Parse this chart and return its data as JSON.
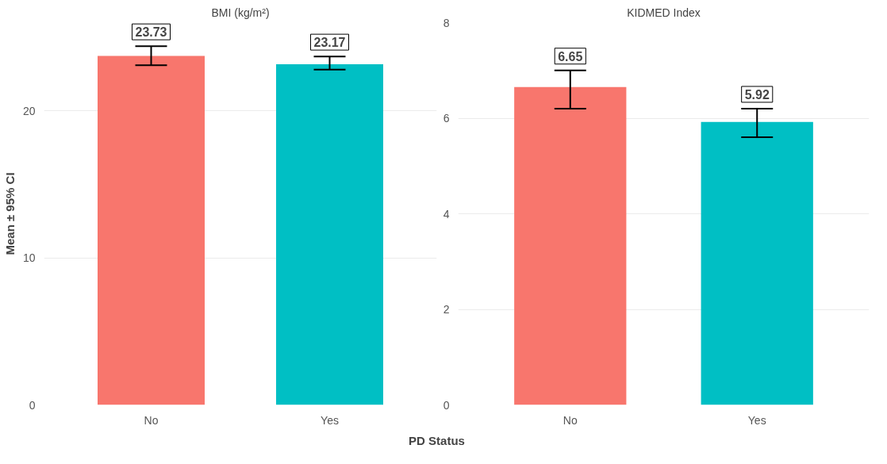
{
  "chart_data": [
    {
      "type": "bar",
      "title": "BMI (kg/m²)",
      "ylabel": "Mean ± 95% CI",
      "xlabel": "PD Status",
      "categories": [
        "No",
        "Yes"
      ],
      "values": [
        23.73,
        23.17
      ],
      "colors": [
        "#f8766d",
        "#00bfc4"
      ],
      "errors": [
        [
          23.1,
          24.4
        ],
        [
          22.8,
          23.7
        ]
      ],
      "data_labels": true,
      "ylim": [
        0,
        26
      ],
      "yticks": [
        0,
        10,
        20
      ],
      "grid": "y"
    },
    {
      "type": "bar",
      "title": "KIDMED Index",
      "categories": [
        "No",
        "Yes"
      ],
      "values": [
        6.65,
        5.92
      ],
      "colors": [
        "#f8766d",
        "#00bfc4"
      ],
      "errors": [
        [
          6.2,
          7.0
        ],
        [
          5.6,
          6.2
        ]
      ],
      "data_labels": true,
      "ylim": [
        0,
        8
      ],
      "yticks": [
        0,
        2,
        4,
        6,
        8
      ],
      "grid": "y"
    }
  ]
}
